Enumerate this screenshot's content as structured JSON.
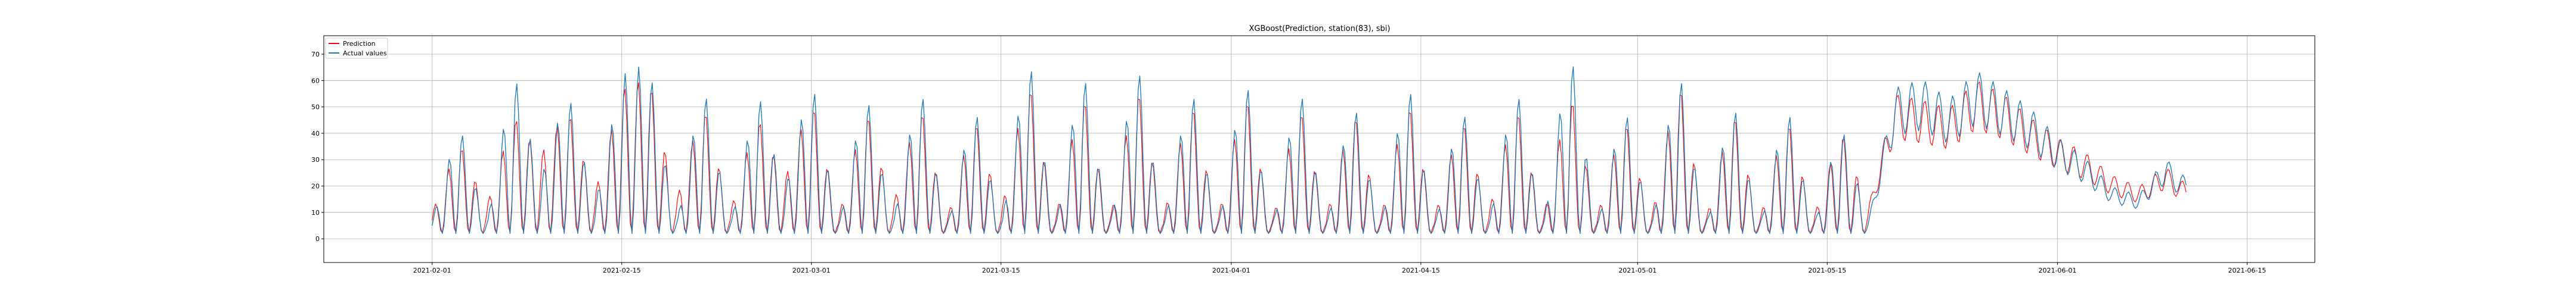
{
  "chart_data": {
    "type": "line",
    "title": "XGBoost(Prediction, station(83), sbi)",
    "xlabel": "",
    "ylabel": "",
    "grid": true,
    "legend_position": "top-left",
    "x_range": [
      "2021-01-24",
      "2021-06-20"
    ],
    "ylim": [
      -9,
      77
    ],
    "x_ticks": [
      "2021-02-01",
      "2021-02-15",
      "2021-03-01",
      "2021-03-15",
      "2021-04-01",
      "2021-04-15",
      "2021-05-01",
      "2021-05-15",
      "2021-06-01",
      "2021-06-15"
    ],
    "y_ticks": [
      0,
      10,
      20,
      30,
      40,
      50,
      60,
      70
    ],
    "x_start": "2021-02-01",
    "x_end": "2021-06-10",
    "series": [
      {
        "name": "Prediction",
        "color": "#ff0000",
        "dates": [
          "2021-02-01",
          "2021-02-03",
          "2021-02-05",
          "2021-02-07",
          "2021-02-09",
          "2021-02-11",
          "2021-02-13",
          "2021-02-15",
          "2021-02-17",
          "2021-02-19",
          "2021-02-21",
          "2021-02-23",
          "2021-02-25",
          "2021-02-27",
          "2021-03-01",
          "2021-03-03",
          "2021-03-05",
          "2021-03-07",
          "2021-03-09",
          "2021-03-11",
          "2021-03-13",
          "2021-03-15",
          "2021-03-17",
          "2021-03-19",
          "2021-03-21",
          "2021-03-23",
          "2021-03-25",
          "2021-03-27",
          "2021-03-29",
          "2021-03-31",
          "2021-04-02",
          "2021-04-04",
          "2021-04-06",
          "2021-04-08",
          "2021-04-10",
          "2021-04-12",
          "2021-04-14",
          "2021-04-16",
          "2021-04-18",
          "2021-04-20",
          "2021-04-22",
          "2021-04-24",
          "2021-04-26",
          "2021-04-28",
          "2021-04-30",
          "2021-05-02",
          "2021-05-04",
          "2021-05-06",
          "2021-05-08",
          "2021-05-10",
          "2021-05-12",
          "2021-05-14",
          "2021-05-16",
          "2021-05-18",
          "2021-05-20",
          "2021-05-22",
          "2021-05-24",
          "2021-05-26",
          "2021-05-28",
          "2021-05-30",
          "2021-06-01",
          "2021-06-03",
          "2021-06-05",
          "2021-06-07",
          "2021-06-09",
          "2021-06-10"
        ],
        "values": [
          8,
          35,
          10,
          45,
          30,
          48,
          15,
          55,
          60,
          12,
          50,
          8,
          45,
          20,
          52,
          6,
          48,
          10,
          50,
          5,
          45,
          8,
          60,
          5,
          55,
          4,
          58,
          6,
          52,
          5,
          55,
          4,
          50,
          6,
          48,
          5,
          52,
          6,
          45,
          8,
          50,
          5,
          55,
          6,
          45,
          5,
          60,
          4,
          48,
          5,
          45,
          6,
          40,
          10,
          50,
          48,
          45,
          55,
          50,
          42,
          35,
          30,
          22,
          18,
          25,
          20
        ]
      },
      {
        "name": "Actual values",
        "color": "#1f77b4",
        "dates": [
          "2021-02-01",
          "2021-02-03",
          "2021-02-05",
          "2021-02-07",
          "2021-02-09",
          "2021-02-11",
          "2021-02-13",
          "2021-02-15",
          "2021-02-17",
          "2021-02-19",
          "2021-02-21",
          "2021-02-23",
          "2021-02-25",
          "2021-02-27",
          "2021-03-01",
          "2021-03-03",
          "2021-03-05",
          "2021-03-07",
          "2021-03-09",
          "2021-03-11",
          "2021-03-13",
          "2021-03-15",
          "2021-03-17",
          "2021-03-19",
          "2021-03-21",
          "2021-03-23",
          "2021-03-25",
          "2021-03-27",
          "2021-03-29",
          "2021-03-31",
          "2021-04-02",
          "2021-04-04",
          "2021-04-06",
          "2021-04-08",
          "2021-04-10",
          "2021-04-12",
          "2021-04-14",
          "2021-04-16",
          "2021-04-18",
          "2021-04-20",
          "2021-04-22",
          "2021-04-24",
          "2021-04-26",
          "2021-04-28",
          "2021-04-30",
          "2021-05-02",
          "2021-05-04",
          "2021-05-06",
          "2021-05-08",
          "2021-05-10",
          "2021-05-12",
          "2021-05-14",
          "2021-05-16",
          "2021-05-18",
          "2021-05-20",
          "2021-05-22",
          "2021-05-24",
          "2021-05-26",
          "2021-05-28",
          "2021-05-30",
          "2021-06-01",
          "2021-06-03",
          "2021-06-05",
          "2021-06-07",
          "2021-06-09",
          "2021-06-10"
        ],
        "values": [
          5,
          42,
          2,
          62,
          20,
          55,
          10,
          60,
          65,
          2,
          58,
          2,
          55,
          15,
          60,
          2,
          55,
          3,
          58,
          1,
          50,
          2,
          70,
          1,
          65,
          0,
          68,
          2,
          58,
          1,
          62,
          0,
          58,
          2,
          52,
          1,
          60,
          2,
          50,
          3,
          58,
          1,
          72,
          2,
          50,
          1,
          65,
          0,
          52,
          1,
          50,
          2,
          42,
          5,
          52,
          55,
          48,
          58,
          52,
          45,
          35,
          28,
          18,
          15,
          28,
          22
        ]
      }
    ]
  }
}
